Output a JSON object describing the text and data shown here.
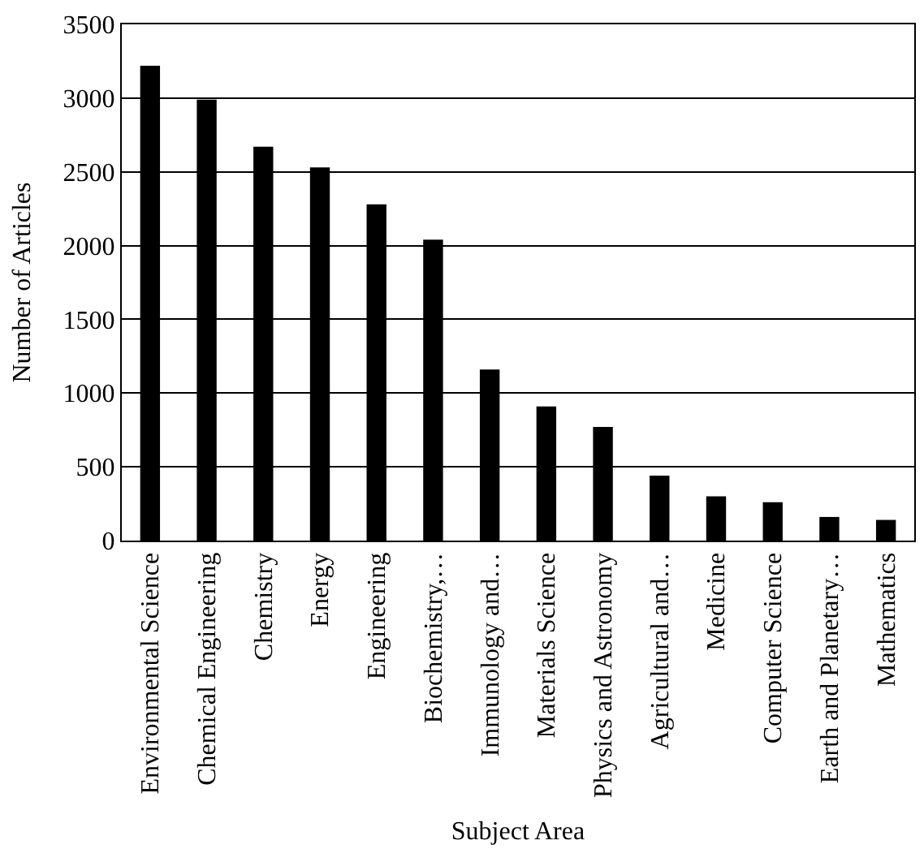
{
  "chart_data": {
    "type": "bar",
    "xlabel": "Subject Area",
    "ylabel": "Number of Articles",
    "categories": [
      "Environmental Science",
      "Chemical Engineering",
      "Chemistry",
      "Energy",
      "Engineering",
      "Biochemistry,…",
      "Immunology and…",
      "Materials Science",
      "Physics and Astronomy",
      "Agricultural and…",
      "Medicine",
      "Computer Science",
      "Earth and Planetary…",
      "Mathematics"
    ],
    "values": [
      3220,
      2990,
      2670,
      2530,
      2280,
      2040,
      1160,
      910,
      770,
      440,
      300,
      260,
      160,
      140
    ],
    "color": "#000000",
    "ylim": [
      0,
      3500
    ],
    "yticks": [
      0,
      500,
      1000,
      1500,
      2000,
      2500,
      3000,
      3500
    ],
    "grid": "y"
  }
}
